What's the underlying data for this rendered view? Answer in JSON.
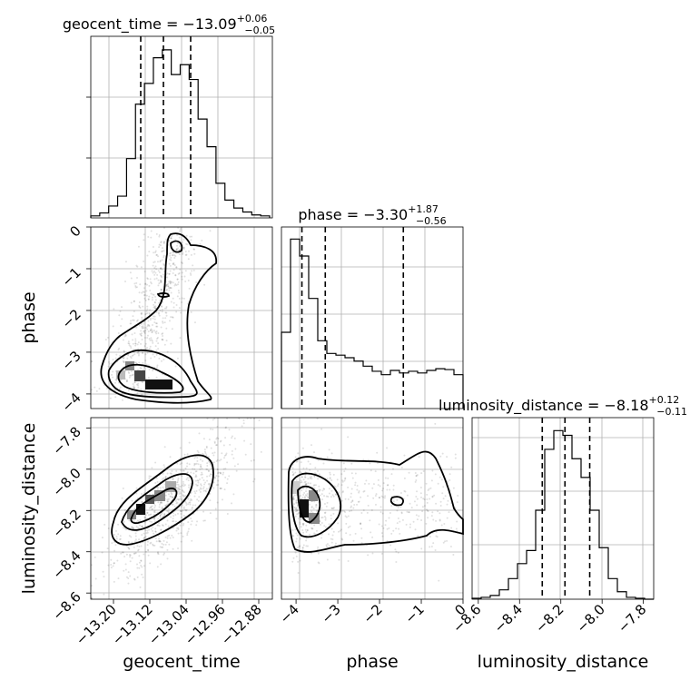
{
  "chart_data": {
    "type": "corner",
    "parameters": [
      "geocent_time",
      "phase",
      "luminosity_distance"
    ],
    "titles": [
      {
        "param": "geocent_time",
        "median": "-13.09",
        "plus": "+0.06",
        "minus": "-0.05"
      },
      {
        "param": "phase",
        "median": "-3.30",
        "plus": "+1.87",
        "minus": "-0.56"
      },
      {
        "param": "luminosity_distance",
        "median": "-8.18",
        "plus": "+0.12",
        "minus": "-0.11"
      }
    ],
    "ranges": {
      "geocent_time": [
        -13.25,
        -12.85
      ],
      "phase": [
        -4.35,
        0.0
      ],
      "luminosity_distance": [
        -8.63,
        -7.75
      ]
    },
    "ticks": {
      "geocent_time": [
        "-13.20",
        "-13.12",
        "-13.04",
        "-12.96",
        "-12.88"
      ],
      "phase": [
        "-4",
        "-3",
        "-2",
        "-1",
        "0"
      ],
      "luminosity_distance": [
        "-8.6",
        "-8.4",
        "-8.2",
        "-8.0",
        "-7.8"
      ]
    },
    "quantiles": {
      "geocent_time": [
        -13.14,
        -13.09,
        -13.03
      ],
      "phase": [
        -3.86,
        -3.3,
        -1.43
      ],
      "luminosity_distance": [
        -8.29,
        -8.18,
        -8.06
      ]
    },
    "hist_geocent_time": {
      "x_start": -13.25,
      "bin_width": 0.0197,
      "values": [
        2,
        5,
        12,
        22,
        60,
        115,
        136,
        162,
        170,
        145,
        155,
        140,
        100,
        72,
        35,
        18,
        10,
        6,
        3,
        2
      ]
    },
    "hist_phase": {
      "x_start": -4.35,
      "bin_width": 0.2175,
      "values": [
        90,
        200,
        180,
        130,
        80,
        65,
        63,
        60,
        56,
        50,
        44,
        40,
        45,
        42,
        44,
        42,
        45,
        47,
        46,
        40
      ]
    },
    "hist_luminosity_distance": {
      "x_start": -8.63,
      "bin_width": 0.044,
      "values": [
        1,
        2,
        4,
        10,
        22,
        38,
        52,
        95,
        160,
        180,
        175,
        150,
        130,
        95,
        55,
        22,
        8,
        2,
        1,
        0
      ]
    },
    "grid": true,
    "grid_color": "#b0b0b0",
    "hist_ymax": {
      "geocent_time": 180,
      "phase": 210,
      "luminosity_distance": 190
    }
  }
}
